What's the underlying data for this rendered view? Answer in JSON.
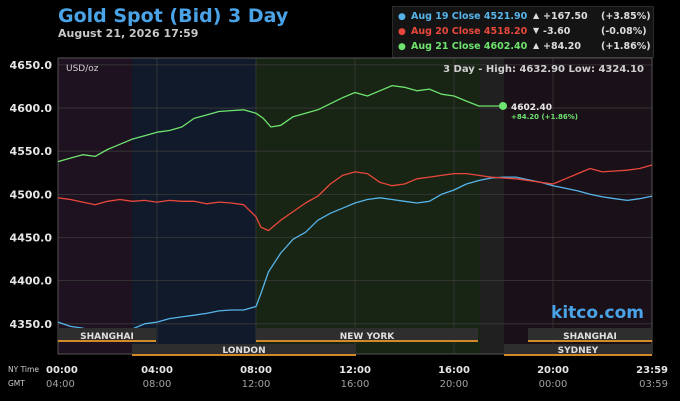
{
  "header": {
    "title": "Gold Spot (Bid) 3 Day",
    "date": "August 21, 2026 17:59"
  },
  "legend": [
    {
      "label": "Aug 19 Close 4521.90",
      "arrow": "▲",
      "change": "+167.50",
      "pct": "(+3.85%)",
      "color": "#56b4e9"
    },
    {
      "label": "Aug 20 Close 4518.20",
      "arrow": "▼",
      "change": "-3.60",
      "pct": "(-0.08%)",
      "color": "#e8483b"
    },
    {
      "label": "Aug 21 Close 4602.40",
      "arrow": "▲",
      "change": "+84.20",
      "pct": "(+1.86%)",
      "color": "#6ee36e"
    }
  ],
  "chart_info": {
    "unit": "USD/oz",
    "high_low": "3 Day - High: 4632.90  Low: 4324.10",
    "last_value": "4602.40",
    "last_change": "+84.20 (+1.86%)",
    "watermark": "kitco.com"
  },
  "sessions_top": [
    "SHANGHAI",
    "NEW YORK",
    "SHANGHAI"
  ],
  "sessions_bottom": [
    "LONDON",
    "SYDNEY"
  ],
  "time_labels": {
    "ny_caption": "NY Time",
    "gmt_caption": "GMT",
    "ny": [
      "00:00",
      "04:00",
      "08:00",
      "12:00",
      "16:00",
      "20:00",
      "23:59"
    ],
    "gmt": [
      "04:00",
      "08:00",
      "12:00",
      "16:00",
      "20:00",
      "00:00",
      "03:59"
    ]
  },
  "chart_data": {
    "type": "line",
    "title": "Gold Spot (Bid) 3 Day",
    "ylabel": "USD/oz",
    "x_unit": "hours NY time",
    "xlim": [
      0,
      24
    ],
    "ylim": [
      4315,
      4658
    ],
    "yticks": [
      4350.0,
      4400.0,
      4450.0,
      4500.0,
      4550.0,
      4600.0,
      4650.0
    ],
    "ytick_labels": [
      "4350.0",
      "4400.0",
      "4450.0",
      "4500.0",
      "4550.0",
      "4600.0",
      "4650.0"
    ],
    "series": [
      {
        "name": "Aug 19",
        "color": "#56b4e9",
        "points": [
          [
            0,
            4352
          ],
          [
            0.5,
            4347
          ],
          [
            1,
            4345
          ],
          [
            1.5,
            4340
          ],
          [
            2,
            4337
          ],
          [
            2.5,
            4342
          ],
          [
            3,
            4344
          ],
          [
            3.5,
            4350
          ],
          [
            4,
            4352
          ],
          [
            4.5,
            4356
          ],
          [
            5,
            4358
          ],
          [
            5.5,
            4360
          ],
          [
            6,
            4362
          ],
          [
            6.5,
            4365
          ],
          [
            7,
            4366
          ],
          [
            7.5,
            4366
          ],
          [
            8,
            4370
          ],
          [
            8.2,
            4385
          ],
          [
            8.5,
            4410
          ],
          [
            9,
            4432
          ],
          [
            9.5,
            4448
          ],
          [
            10,
            4456
          ],
          [
            10.5,
            4470
          ],
          [
            11,
            4478
          ],
          [
            11.5,
            4484
          ],
          [
            12,
            4490
          ],
          [
            12.5,
            4494
          ],
          [
            13,
            4496
          ],
          [
            13.5,
            4494
          ],
          [
            14,
            4492
          ],
          [
            14.5,
            4490
          ],
          [
            15,
            4492
          ],
          [
            15.5,
            4500
          ],
          [
            16,
            4505
          ],
          [
            16.5,
            4512
          ],
          [
            17,
            4516
          ],
          [
            17.5,
            4519
          ],
          [
            18,
            4520
          ],
          [
            18.5,
            4520
          ],
          [
            19,
            4517
          ],
          [
            19.5,
            4514
          ],
          [
            20,
            4510
          ],
          [
            20.5,
            4507
          ],
          [
            21,
            4504
          ],
          [
            21.5,
            4500
          ],
          [
            22,
            4497
          ],
          [
            22.5,
            4495
          ],
          [
            23,
            4493
          ],
          [
            23.5,
            4495
          ],
          [
            24,
            4498
          ]
        ]
      },
      {
        "name": "Aug 20",
        "color": "#e8483b",
        "points": [
          [
            0,
            4496
          ],
          [
            0.5,
            4494
          ],
          [
            1,
            4491
          ],
          [
            1.5,
            4488
          ],
          [
            2,
            4492
          ],
          [
            2.5,
            4494
          ],
          [
            3,
            4492
          ],
          [
            3.5,
            4493
          ],
          [
            4,
            4491
          ],
          [
            4.5,
            4493
          ],
          [
            5,
            4492
          ],
          [
            5.5,
            4492
          ],
          [
            6,
            4489
          ],
          [
            6.5,
            4491
          ],
          [
            7,
            4490
          ],
          [
            7.5,
            4488
          ],
          [
            8,
            4474
          ],
          [
            8.2,
            4462
          ],
          [
            8.5,
            4458
          ],
          [
            9,
            4470
          ],
          [
            9.5,
            4480
          ],
          [
            10,
            4490
          ],
          [
            10.5,
            4498
          ],
          [
            11,
            4512
          ],
          [
            11.5,
            4522
          ],
          [
            12,
            4526
          ],
          [
            12.5,
            4524
          ],
          [
            13,
            4514
          ],
          [
            13.5,
            4510
          ],
          [
            14,
            4512
          ],
          [
            14.5,
            4518
          ],
          [
            15,
            4520
          ],
          [
            15.5,
            4522
          ],
          [
            16,
            4524
          ],
          [
            16.5,
            4524
          ],
          [
            17,
            4522
          ],
          [
            17.5,
            4520
          ],
          [
            18,
            4519
          ],
          [
            18.5,
            4518
          ],
          [
            19,
            4516
          ],
          [
            19.5,
            4514
          ],
          [
            20,
            4512
          ],
          [
            20.5,
            4518
          ],
          [
            21,
            4524
          ],
          [
            21.5,
            4530
          ],
          [
            22,
            4526
          ],
          [
            22.5,
            4527
          ],
          [
            23,
            4528
          ],
          [
            23.5,
            4530
          ],
          [
            24,
            4534
          ]
        ]
      },
      {
        "name": "Aug 21",
        "color": "#6ee36e",
        "points": [
          [
            0,
            4538
          ],
          [
            0.5,
            4542
          ],
          [
            1,
            4546
          ],
          [
            1.5,
            4544
          ],
          [
            2,
            4552
          ],
          [
            2.5,
            4558
          ],
          [
            3,
            4564
          ],
          [
            3.5,
            4568
          ],
          [
            4,
            4572
          ],
          [
            4.5,
            4574
          ],
          [
            5,
            4578
          ],
          [
            5.5,
            4588
          ],
          [
            6,
            4592
          ],
          [
            6.5,
            4596
          ],
          [
            7,
            4597
          ],
          [
            7.5,
            4598
          ],
          [
            8,
            4594
          ],
          [
            8.3,
            4588
          ],
          [
            8.6,
            4578
          ],
          [
            9,
            4580
          ],
          [
            9.5,
            4590
          ],
          [
            10,
            4594
          ],
          [
            10.5,
            4598
          ],
          [
            11,
            4605
          ],
          [
            11.5,
            4612
          ],
          [
            12,
            4618
          ],
          [
            12.5,
            4614
          ],
          [
            13,
            4620
          ],
          [
            13.5,
            4626
          ],
          [
            14,
            4624
          ],
          [
            14.5,
            4620
          ],
          [
            15,
            4622
          ],
          [
            15.5,
            4616
          ],
          [
            16,
            4614
          ],
          [
            16.5,
            4608
          ],
          [
            17,
            4602.4
          ],
          [
            17.98,
            4602.4
          ]
        ]
      }
    ],
    "last_point": {
      "x": 17.98,
      "y": 4602.4
    }
  }
}
